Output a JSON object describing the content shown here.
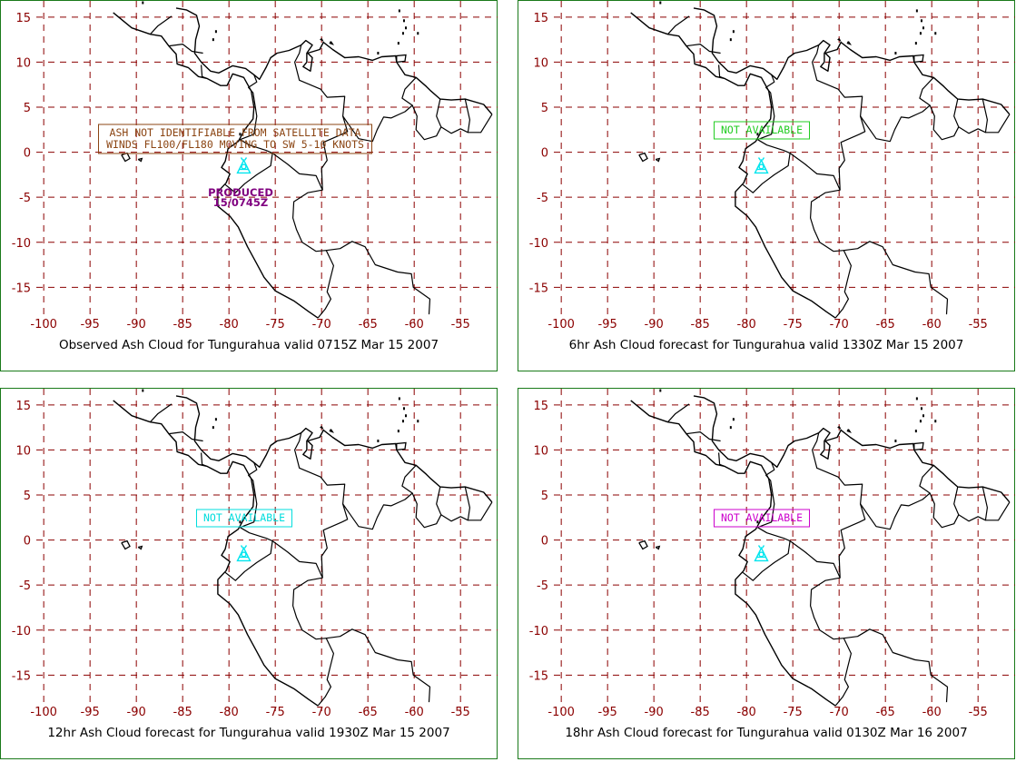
{
  "colors": {
    "grid": "#8b0000",
    "tick_label": "#8b0000",
    "coast": "#000000",
    "panel_border": "#1a7a1a",
    "volcano": "#00e5ee"
  },
  "axes": {
    "lon_ticks": [
      "-100",
      "-95",
      "-90",
      "-85",
      "-80",
      "-75",
      "-70",
      "-65",
      "-60",
      "-55"
    ],
    "lat_ticks": [
      "15",
      "10",
      "5",
      "0",
      "-5",
      "-10",
      "-15"
    ]
  },
  "volcano": {
    "name": "Tungurahua",
    "icon": "volcano-icon",
    "lon": -78.4,
    "lat": -1.5
  },
  "panels": [
    {
      "caption": "Observed Ash Cloud for Tungurahua valid 0715Z Mar 15 2007",
      "note_lines": [
        "ASH NOT IDENTIFIABLE FROM SATELLITE DATA",
        "WINDS FL100/FL180 MOVING TO SW 5-10 KNOTS"
      ],
      "note_color": "#8b4513",
      "produced_lines": [
        "PRODUCED",
        "15/0745Z"
      ],
      "produced_color": "#800080"
    },
    {
      "caption": "6hr Ash Cloud forecast for Tungurahua valid 1330Z Mar 15 2007",
      "note_lines": [
        "NOT AVAILABLE"
      ],
      "note_color": "#22cc22"
    },
    {
      "caption": "12hr Ash Cloud forecast for Tungurahua valid 1930Z Mar 15 2007",
      "note_lines": [
        "NOT AVAILABLE"
      ],
      "note_color": "#00dddd"
    },
    {
      "caption": "18hr Ash Cloud forecast for Tungurahua valid 0130Z Mar 16 2007",
      "note_lines": [
        "NOT AVAILABLE"
      ],
      "note_color": "#cc00cc"
    }
  ]
}
